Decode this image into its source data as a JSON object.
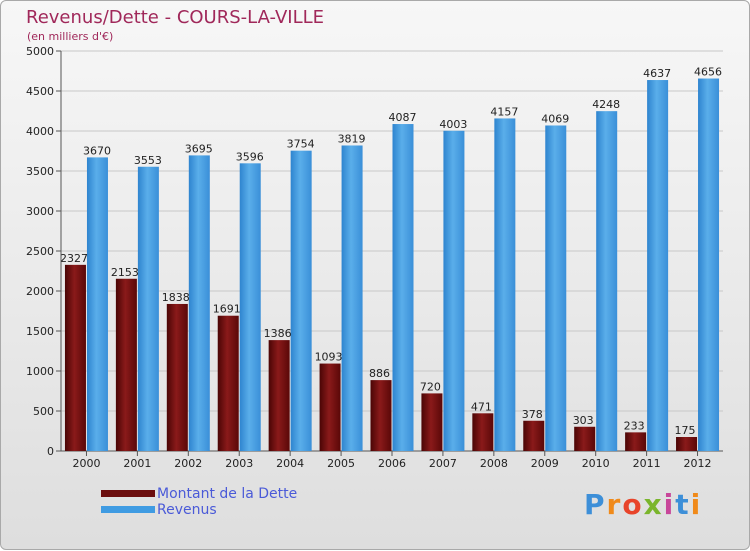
{
  "header": {
    "title": "Revenus/Dette - COURS-LA-VILLE",
    "subtitle": "(en milliers d'€)"
  },
  "logo": {
    "text": "Proxiti"
  },
  "colors": {
    "dette": "#6b0d0d",
    "revenus": "#3f9be2",
    "grid": "#c8c8c8",
    "axis_text": "#222222"
  },
  "chart_data": {
    "type": "bar",
    "categories": [
      "2000",
      "2001",
      "2002",
      "2003",
      "2004",
      "2005",
      "2006",
      "2007",
      "2008",
      "2009",
      "2010",
      "2011",
      "2012"
    ],
    "series": [
      {
        "name": "Montant de la Dette",
        "values": [
          2327,
          2153,
          1838,
          1691,
          1386,
          1093,
          886,
          720,
          471,
          378,
          303,
          233,
          175
        ]
      },
      {
        "name": "Revenus",
        "values": [
          3670,
          3553,
          3695,
          3596,
          3754,
          3819,
          4087,
          4003,
          4157,
          4069,
          4248,
          4637,
          4656
        ]
      }
    ],
    "ylim": [
      0,
      5000
    ],
    "yticks": [
      0,
      500,
      1000,
      1500,
      2000,
      2500,
      3000,
      3500,
      4000,
      4500,
      5000
    ],
    "grid": true,
    "legend_position": "bottom-left"
  }
}
